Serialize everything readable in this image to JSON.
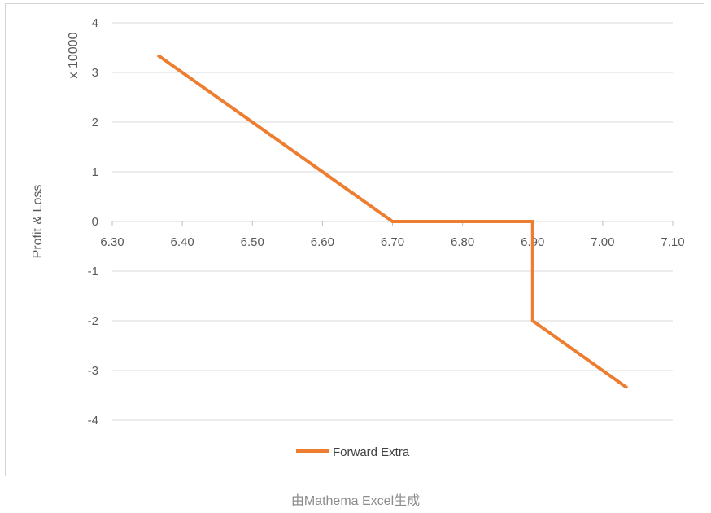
{
  "caption": "由Mathema Excel生成",
  "chart_data": {
    "type": "line",
    "title": "",
    "xlabel": "",
    "ylabel": "Profit & Loss",
    "y_multiplier_label": "x 10000",
    "xlim": [
      6.3,
      7.1
    ],
    "ylim": [
      -4,
      4
    ],
    "x_ticks": [
      "6.30",
      "6.40",
      "6.50",
      "6.60",
      "6.70",
      "6.80",
      "6.90",
      "7.00",
      "7.10"
    ],
    "y_ticks": [
      "4",
      "3",
      "2",
      "1",
      "0",
      "-1",
      "-2",
      "-3",
      "-4"
    ],
    "grid": true,
    "legend_position": "bottom",
    "series": [
      {
        "name": "Forward Extra",
        "color": "#ED7D31",
        "points": [
          [
            6.365,
            3.35
          ],
          [
            6.7,
            0
          ],
          [
            6.9,
            0
          ],
          [
            6.9,
            -2
          ],
          [
            7.035,
            -3.35
          ]
        ]
      }
    ]
  }
}
